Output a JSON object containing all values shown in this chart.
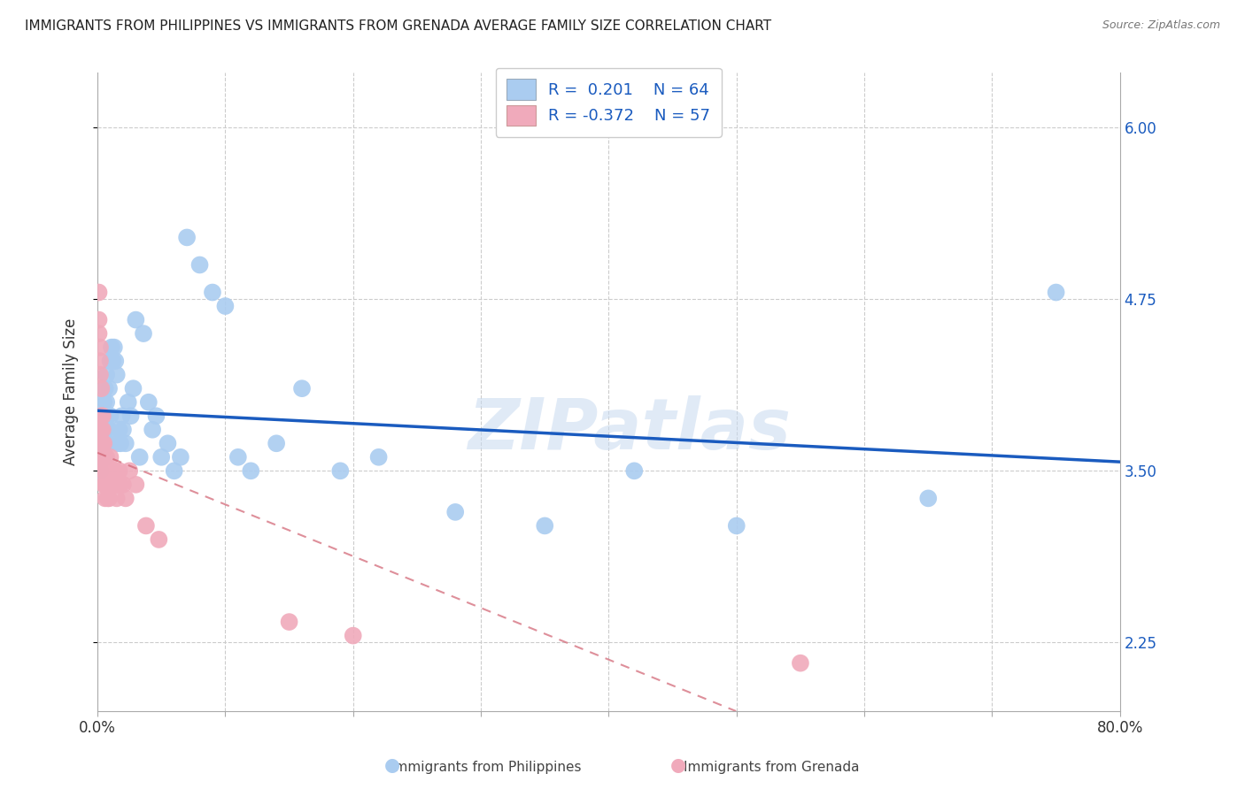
{
  "title": "IMMIGRANTS FROM PHILIPPINES VS IMMIGRANTS FROM GRENADA AVERAGE FAMILY SIZE CORRELATION CHART",
  "source": "Source: ZipAtlas.com",
  "ylabel": "Average Family Size",
  "yticks": [
    2.25,
    3.5,
    4.75,
    6.0
  ],
  "xlim": [
    0.0,
    0.8
  ],
  "ylim": [
    1.75,
    6.4
  ],
  "legend_R_blue": "0.201",
  "legend_N_blue": "64",
  "legend_R_pink": "-0.372",
  "legend_N_pink": "57",
  "blue_color": "#aaccf0",
  "pink_color": "#f0aabb",
  "blue_line_color": "#1a5bbf",
  "pink_line_color": "#d06070",
  "watermark": "ZIPatlas",
  "philippines_x": [
    0.001,
    0.001,
    0.002,
    0.002,
    0.003,
    0.003,
    0.003,
    0.004,
    0.004,
    0.004,
    0.005,
    0.005,
    0.005,
    0.006,
    0.006,
    0.007,
    0.007,
    0.007,
    0.008,
    0.008,
    0.009,
    0.009,
    0.01,
    0.01,
    0.011,
    0.012,
    0.013,
    0.014,
    0.015,
    0.016,
    0.017,
    0.018,
    0.019,
    0.02,
    0.022,
    0.024,
    0.026,
    0.028,
    0.03,
    0.033,
    0.036,
    0.04,
    0.043,
    0.046,
    0.05,
    0.055,
    0.06,
    0.065,
    0.07,
    0.08,
    0.09,
    0.1,
    0.11,
    0.12,
    0.14,
    0.16,
    0.19,
    0.22,
    0.28,
    0.35,
    0.42,
    0.5,
    0.65,
    0.75
  ],
  "philippines_y": [
    3.6,
    3.8,
    3.5,
    3.7,
    3.9,
    3.6,
    3.7,
    3.8,
    3.6,
    3.9,
    4.0,
    3.7,
    3.8,
    4.1,
    3.6,
    4.2,
    4.0,
    3.8,
    3.9,
    3.7,
    4.1,
    3.8,
    4.3,
    3.9,
    4.4,
    4.3,
    4.4,
    4.3,
    4.2,
    3.7,
    3.8,
    3.7,
    3.9,
    3.8,
    3.7,
    4.0,
    3.9,
    4.1,
    4.6,
    3.6,
    4.5,
    4.0,
    3.8,
    3.9,
    3.6,
    3.7,
    3.5,
    3.6,
    5.2,
    5.0,
    4.8,
    4.7,
    3.6,
    3.5,
    3.7,
    4.1,
    3.5,
    3.6,
    3.2,
    3.1,
    3.5,
    3.1,
    3.3,
    4.8
  ],
  "grenada_x": [
    0.001,
    0.001,
    0.001,
    0.002,
    0.002,
    0.002,
    0.003,
    0.003,
    0.003,
    0.003,
    0.004,
    0.004,
    0.004,
    0.004,
    0.004,
    0.005,
    0.005,
    0.005,
    0.005,
    0.006,
    0.006,
    0.006,
    0.006,
    0.006,
    0.007,
    0.007,
    0.007,
    0.007,
    0.008,
    0.008,
    0.008,
    0.009,
    0.009,
    0.009,
    0.01,
    0.01,
    0.01,
    0.011,
    0.011,
    0.012,
    0.013,
    0.013,
    0.014,
    0.015,
    0.015,
    0.016,
    0.017,
    0.018,
    0.02,
    0.022,
    0.025,
    0.03,
    0.038,
    0.048,
    0.15,
    0.2,
    0.55
  ],
  "grenada_y": [
    4.6,
    4.8,
    4.5,
    4.3,
    4.4,
    4.2,
    4.1,
    3.9,
    3.7,
    3.8,
    3.6,
    3.8,
    3.5,
    3.7,
    3.9,
    3.6,
    3.5,
    3.7,
    3.4,
    3.6,
    3.5,
    3.4,
    3.6,
    3.3,
    3.6,
    3.5,
    3.4,
    3.5,
    3.5,
    3.4,
    3.3,
    3.5,
    3.4,
    3.3,
    3.6,
    3.5,
    3.4,
    3.5,
    3.4,
    3.5,
    3.4,
    3.5,
    3.5,
    3.4,
    3.3,
    3.4,
    3.5,
    3.4,
    3.4,
    3.3,
    3.5,
    3.4,
    3.1,
    3.0,
    2.4,
    2.3,
    2.1
  ]
}
